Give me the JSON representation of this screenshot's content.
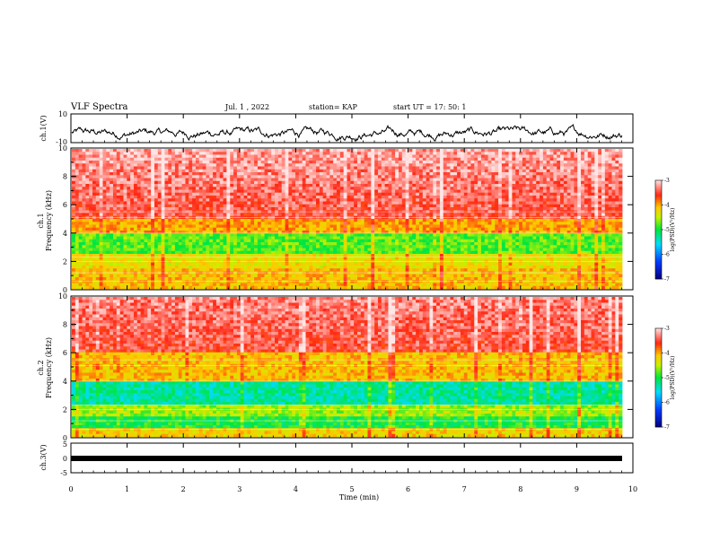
{
  "header": {
    "title": "VLF Spectra",
    "date": "Jul. 1 , 2022",
    "station": "station= KAP",
    "start": "start UT = 17: 50: 1"
  },
  "colors": {
    "spectrogram_low": "#0000a0",
    "spectrogram_mid": "#00e000",
    "spectrogram_high": "#ff2a1a",
    "trace": "#000000"
  },
  "chart_data": [
    {
      "type": "line",
      "panel": "ch1-waveform",
      "ylabel": "ch.1(V)",
      "ylim": [
        -10,
        10
      ],
      "ytick_labels": [
        "10",
        "-10"
      ],
      "xlim": [
        0,
        10
      ],
      "note_values": "noisy waveform fluctuating roughly between -8 and 2 V"
    },
    {
      "type": "heatmap",
      "panel": "ch1-spectrogram",
      "ylabel": "ch.1\nFrequency (kHz)",
      "ylim": [
        0,
        10
      ],
      "ytick_labels": [
        "0",
        "2",
        "4",
        "6",
        "8",
        "10"
      ],
      "xlim": [
        0,
        10
      ],
      "colorbar": {
        "label": "log(PSD)(V²/Hz)",
        "range": [
          -7,
          -3
        ],
        "tick_labels": [
          "-3",
          "-4",
          "-5",
          "-6",
          "-7"
        ]
      }
    },
    {
      "type": "heatmap",
      "panel": "ch2-spectrogram",
      "ylabel": "ch.2\nFrequency (kHz)",
      "ylim": [
        0,
        10
      ],
      "ytick_labels": [
        "0",
        "2",
        "4",
        "6",
        "8",
        "10"
      ],
      "xlim": [
        0,
        10
      ],
      "colorbar": {
        "label": "log(PSD)(V²/Hz)",
        "range": [
          -7,
          -3
        ],
        "tick_labels": [
          "-3",
          "-4",
          "-5",
          "-6",
          "-7"
        ]
      }
    },
    {
      "type": "line",
      "panel": "ch3-waveform",
      "ylabel": "ch.3(V)",
      "ylim": [
        -5,
        5
      ],
      "ytick_labels": [
        "5",
        "0",
        "-5"
      ],
      "xlim": [
        0,
        10
      ],
      "xlabel": "Time (min)",
      "xtick_labels": [
        "0",
        "1",
        "2",
        "3",
        "4",
        "5",
        "6",
        "7",
        "8",
        "9",
        "10"
      ]
    }
  ]
}
